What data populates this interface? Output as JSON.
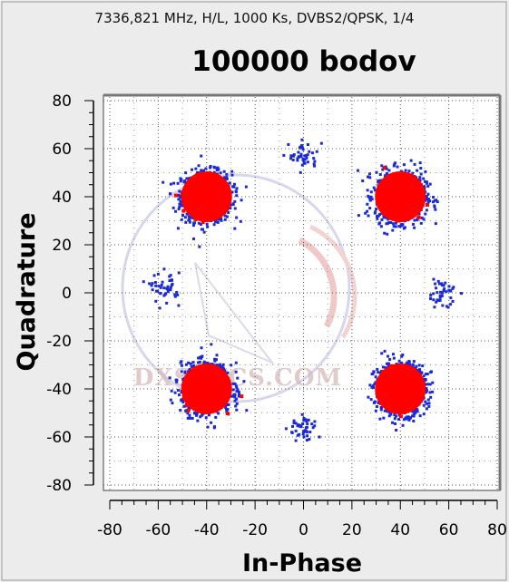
{
  "header": {
    "signal_info": "7336,821 MHz, H/L, 1000 Ks, DVBS2/QPSK, 1/4"
  },
  "watermark_text": "DXSATCS.COM",
  "colors": {
    "background": "#ececec",
    "plot_background": "#ffffff",
    "core_points": "#ff0000",
    "halo_points": "#1a2bd6",
    "grid": "#555555"
  },
  "chart_data": {
    "type": "scatter",
    "title": "100000 bodov",
    "xlabel": "In-Phase",
    "ylabel": "Quadrature",
    "xlim": [
      -80,
      80
    ],
    "ylim": [
      -80,
      80
    ],
    "x_ticks": [
      -80,
      -60,
      -40,
      -20,
      0,
      20,
      40,
      60,
      80
    ],
    "y_ticks": [
      80,
      60,
      40,
      20,
      0,
      -20,
      -40,
      -60,
      -80
    ],
    "grid": true,
    "point_count": 100000,
    "clusters": [
      {
        "name": "main",
        "x": -40,
        "y": 40,
        "spread": 4.5,
        "density": "high"
      },
      {
        "name": "main",
        "x": 40,
        "y": 40,
        "spread": 4.5,
        "density": "high"
      },
      {
        "name": "main",
        "x": -40,
        "y": -40,
        "spread": 4.5,
        "density": "high"
      },
      {
        "name": "main",
        "x": 40,
        "y": -40,
        "spread": 4.5,
        "density": "high"
      },
      {
        "name": "minor",
        "x": 0,
        "y": 57,
        "spread": 3,
        "density": "sparse"
      },
      {
        "name": "minor",
        "x": 0,
        "y": -57,
        "spread": 3,
        "density": "sparse"
      },
      {
        "name": "minor",
        "x": -57,
        "y": 2,
        "spread": 3,
        "density": "sparse"
      },
      {
        "name": "minor",
        "x": 57,
        "y": 0,
        "spread": 3,
        "density": "sparse"
      }
    ]
  }
}
